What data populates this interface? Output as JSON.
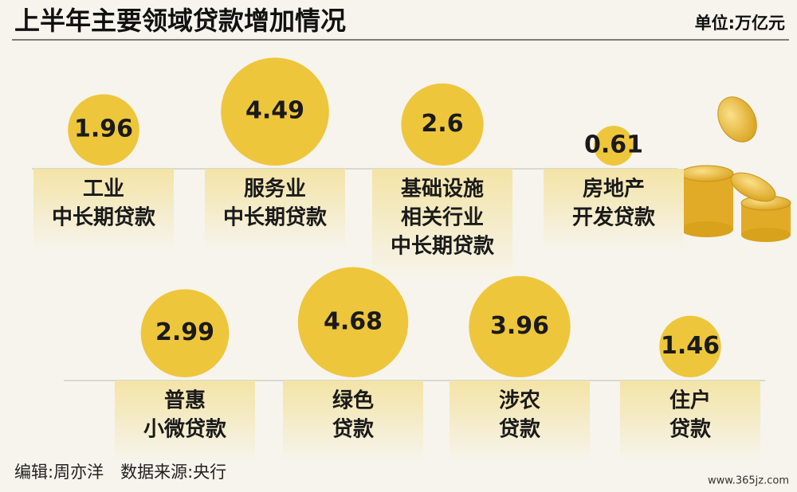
{
  "chart_data": {
    "type": "bubble",
    "title": "上半年主要领域贷款增加情况",
    "unit": "单位:万亿元",
    "footer": "编辑:周亦洋　数据来源:央行",
    "watermark": "www.365jz.com",
    "color": "#eec63c",
    "categories": [
      [
        "工业",
        "中长期贷款"
      ],
      [
        "服务业",
        "中长期贷款"
      ],
      [
        "基础设施",
        "相关行业",
        "中长期贷款"
      ],
      [
        "房地产",
        "开发贷款"
      ],
      [
        "普惠",
        "小微贷款"
      ],
      [
        "绿色",
        "贷款"
      ],
      [
        "涉农",
        "贷款"
      ],
      [
        "住户",
        "贷款"
      ]
    ],
    "values": [
      1.96,
      4.49,
      2.6,
      0.61,
      2.99,
      4.68,
      3.96,
      1.46
    ]
  }
}
